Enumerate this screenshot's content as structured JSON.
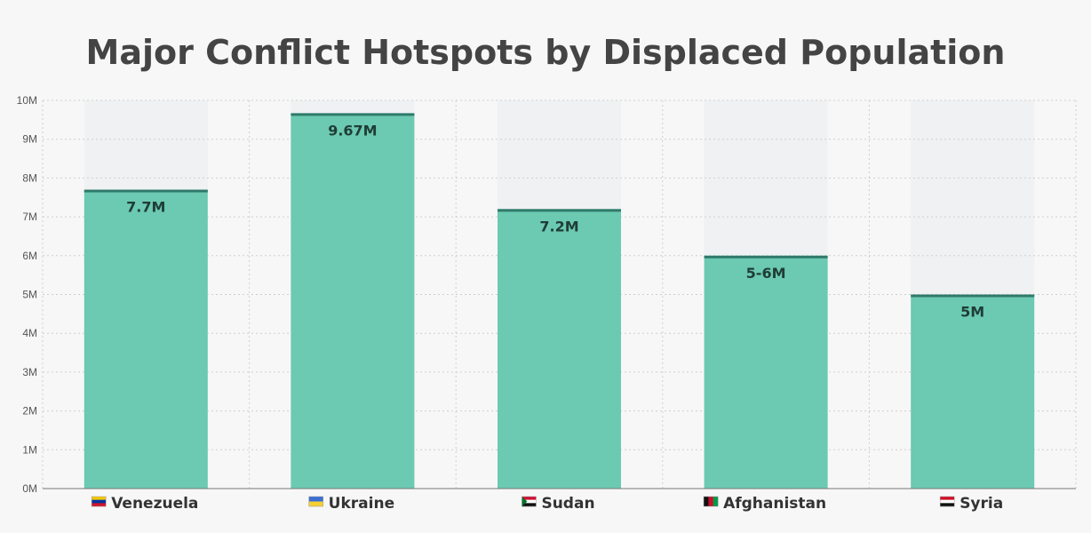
{
  "chart_data": {
    "type": "bar",
    "title": "Major Conflict Hotspots by Displaced Population",
    "xlabel": "",
    "ylabel": "",
    "ylim": [
      0,
      10000000
    ],
    "yticks": [
      {
        "value": 0,
        "label": "0M"
      },
      {
        "value": 1000000,
        "label": "1M"
      },
      {
        "value": 2000000,
        "label": "2M"
      },
      {
        "value": 3000000,
        "label": "3M"
      },
      {
        "value": 4000000,
        "label": "4M"
      },
      {
        "value": 5000000,
        "label": "5M"
      },
      {
        "value": 6000000,
        "label": "6M"
      },
      {
        "value": 7000000,
        "label": "7M"
      },
      {
        "value": 8000000,
        "label": "8M"
      },
      {
        "value": 9000000,
        "label": "9M"
      },
      {
        "value": 10000000,
        "label": "10M"
      }
    ],
    "categories": [
      "Venezuela",
      "Ukraine",
      "Sudan",
      "Afghanistan",
      "Syria"
    ],
    "values": [
      7700000,
      9670000,
      7200000,
      6000000,
      5000000
    ],
    "data_labels": [
      "7.7M",
      "9.67M",
      "7.2M",
      "5-6M",
      "5M"
    ],
    "grid": true,
    "colors": {
      "bar": "#6cc9b2",
      "bar_top": "#2f7a6a",
      "background_column": "#eff1f3",
      "grid": "#cfcfcf",
      "axis": "#777777"
    },
    "flags": [
      {
        "name": "venezuela-flag",
        "stripes": [
          "#f6c700",
          "#0033a0",
          "#cf142b"
        ],
        "orient": "horizontal"
      },
      {
        "name": "ukraine-flag",
        "stripes": [
          "#3b6fd1",
          "#f5d033"
        ],
        "orient": "horizontal"
      },
      {
        "name": "sudan-flag",
        "stripes": [
          "#d21034",
          "#ffffff",
          "#111111"
        ],
        "orient": "horizontal",
        "triangle": "#007229"
      },
      {
        "name": "afghanistan-flag",
        "stripes": [
          "#111111",
          "#c8102e",
          "#009a44"
        ],
        "orient": "vertical"
      },
      {
        "name": "syria-flag",
        "stripes": [
          "#ce1126",
          "#ffffff",
          "#111111"
        ],
        "orient": "horizontal"
      }
    ]
  }
}
